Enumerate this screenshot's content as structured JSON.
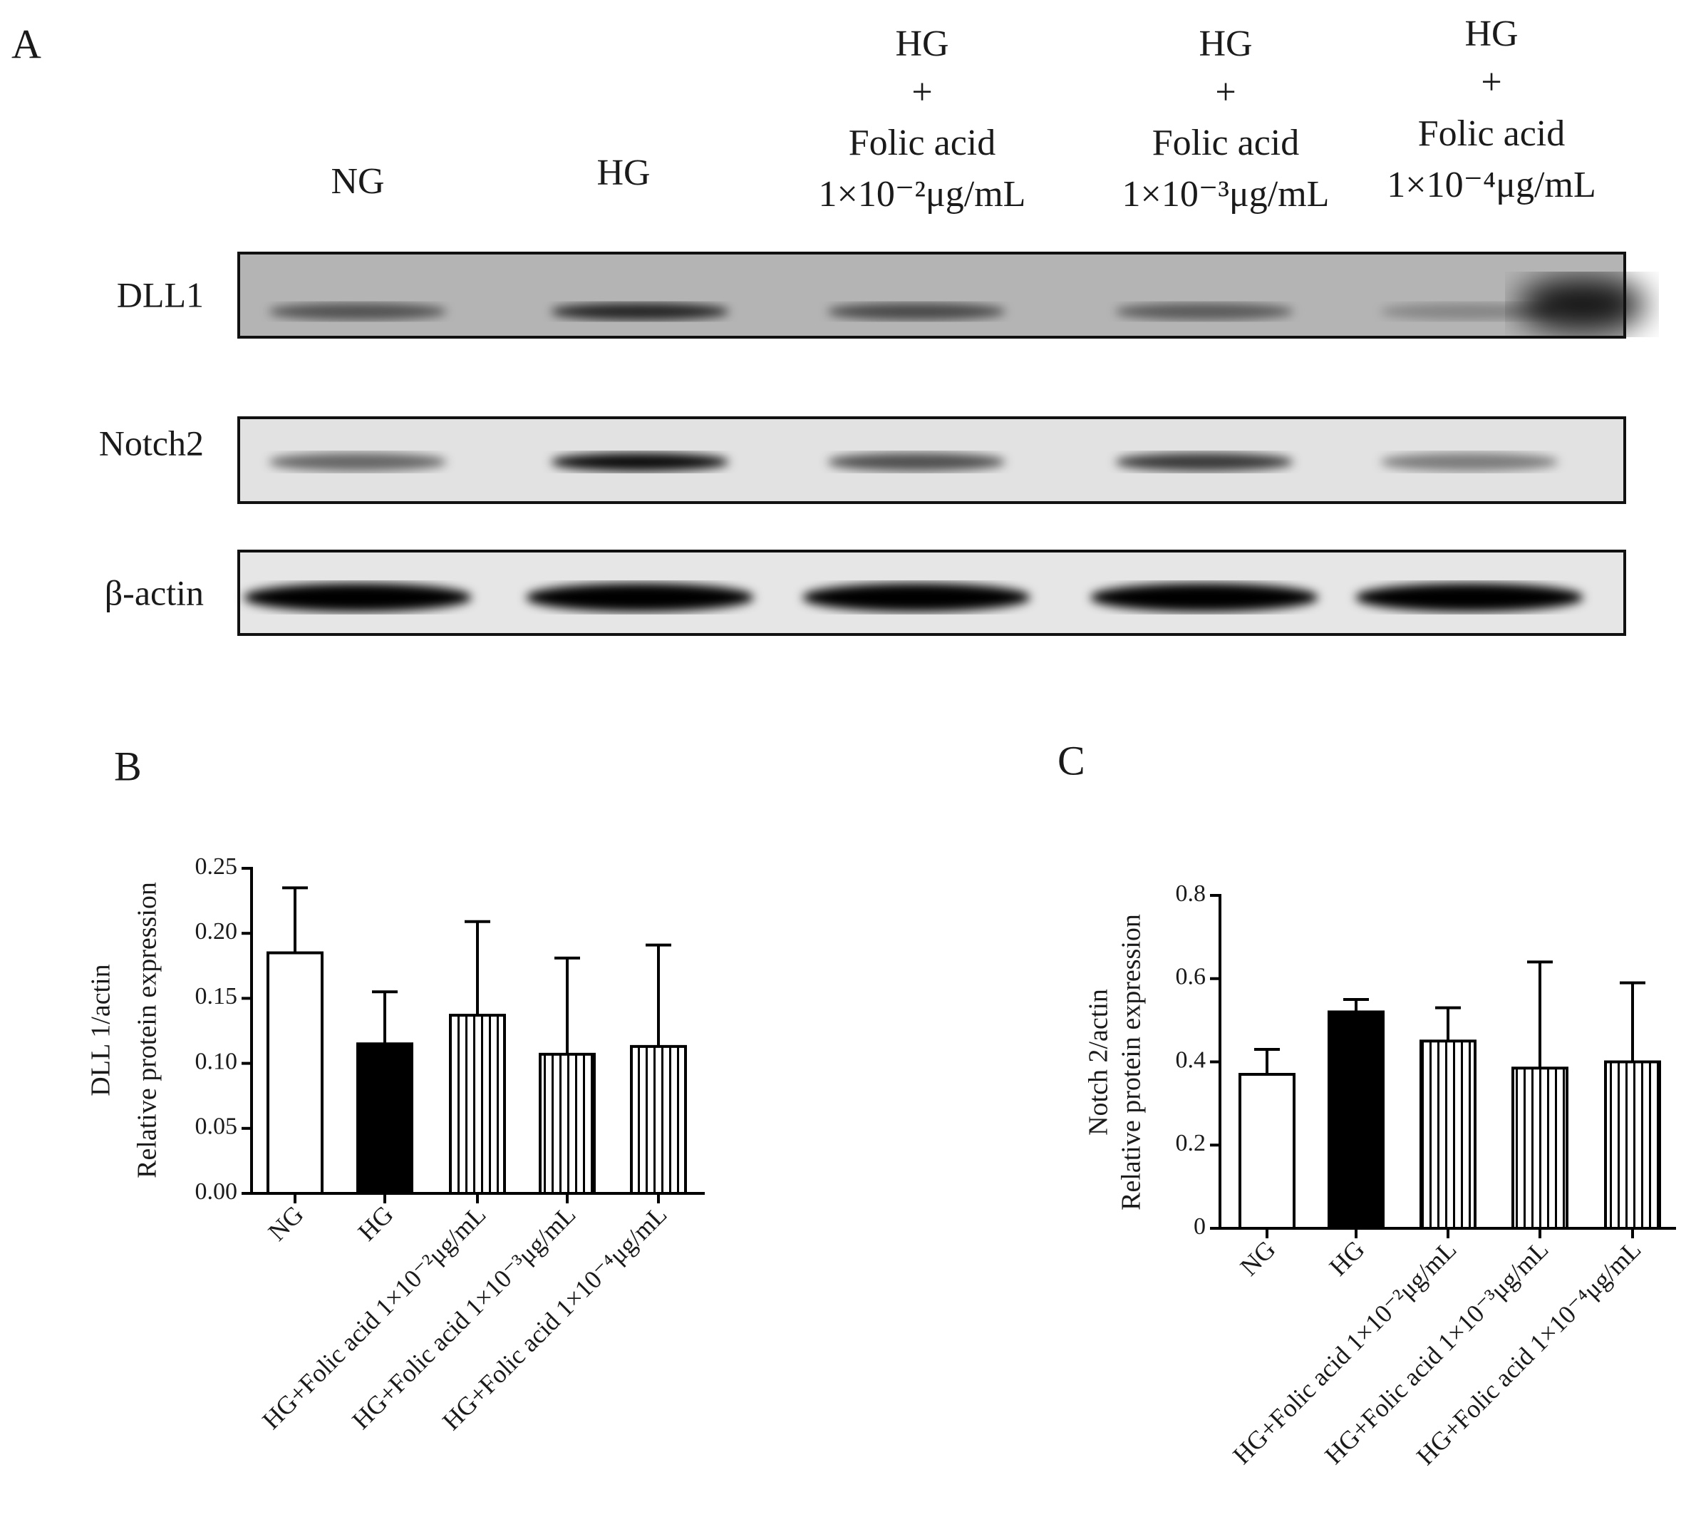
{
  "panel_a": {
    "label": "A",
    "lanes": [
      {
        "lines": [
          "NG"
        ]
      },
      {
        "lines": [
          "HG"
        ]
      },
      {
        "lines": [
          "HG",
          "+",
          "Folic acid",
          "1×10⁻²μg/mL"
        ]
      },
      {
        "lines": [
          "HG",
          "+",
          "Folic acid",
          "1×10⁻³μg/mL"
        ]
      },
      {
        "lines": [
          "HG",
          "+",
          "Folic acid",
          "1×10⁻⁴μg/mL"
        ]
      }
    ],
    "rows": [
      "DLL1",
      "Notch2",
      "β-actin"
    ]
  },
  "chart_data": [
    {
      "type": "bar",
      "panel": "B",
      "ylabel": [
        "DLL 1/actin",
        "Relative protein expression"
      ],
      "categories": [
        "NG",
        "HG",
        "HG+Folic acid 1×10⁻²μg/mL",
        "HG+Folic acid 1×10⁻³μg/mL",
        "HG+Folic acid 1×10⁻⁴μg/mL"
      ],
      "values": [
        0.185,
        0.115,
        0.137,
        0.107,
        0.113
      ],
      "errors": [
        0.05,
        0.04,
        0.072,
        0.074,
        0.078
      ],
      "patterns": [
        "open",
        "solid",
        "vertical-lines",
        "vertical-lines",
        "vertical-lines"
      ],
      "ylim": [
        0,
        0.25
      ],
      "yticks": [
        {
          "value": 0,
          "label": "0.00"
        },
        0.05,
        {
          "value": 0.1,
          "label": "0.10"
        },
        0.15,
        {
          "value": 0.2,
          "label": "0.20"
        },
        0.25
      ]
    },
    {
      "type": "bar",
      "panel": "C",
      "ylabel": [
        "Notch 2/actin",
        "Relative protein expression"
      ],
      "categories": [
        "NG",
        "HG",
        "HG+Folic acid 1×10⁻²μg/mL",
        "HG+Folic acid 1×10⁻³μg/mL",
        "HG+Folic acid 1×10⁻⁴μg/mL"
      ],
      "values": [
        0.37,
        0.52,
        0.45,
        0.385,
        0.4
      ],
      "errors": [
        0.06,
        0.03,
        0.08,
        0.255,
        0.19
      ],
      "patterns": [
        "open",
        "solid",
        "vertical-lines",
        "vertical-lines",
        "vertical-lines"
      ],
      "ylim": [
        0,
        0.8
      ],
      "yticks": [
        0,
        0.2,
        0.4,
        0.6,
        0.8
      ]
    }
  ]
}
